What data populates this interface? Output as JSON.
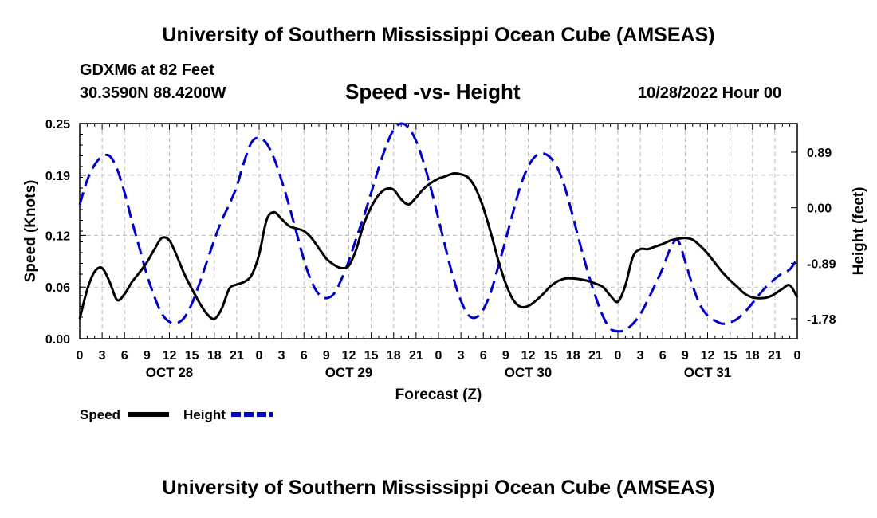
{
  "header": {
    "title": "University of Southern Mississippi Ocean Cube (AMSEAS)",
    "station": "GDXM6 at 82 Feet",
    "coords": "30.3590N   88.4200W",
    "date": "10/28/2022 Hour 00"
  },
  "footer": {
    "title": "University of Southern Mississippi Ocean Cube (AMSEAS)"
  },
  "chart_data": {
    "type": "line",
    "title": "Speed -vs- Height",
    "xlabel": "Forecast (Z)",
    "ylabel": "Speed (Knots)",
    "ylabel_right": "Height (feet)",
    "x_unit": "hours since 10/28/2022 00Z",
    "xlim": [
      0,
      96
    ],
    "ylim": [
      0,
      0.25
    ],
    "ylim_right": [
      -2.1,
      1.35
    ],
    "grid": true,
    "legend_position": "bottom-left",
    "x_tick_labels": [
      "0",
      "3",
      "6",
      "9",
      "12",
      "15",
      "18",
      "21",
      "0",
      "3",
      "6",
      "9",
      "12",
      "15",
      "18",
      "21",
      "0",
      "3",
      "6",
      "9",
      "12",
      "15",
      "18",
      "21",
      "0",
      "3",
      "6",
      "9",
      "12",
      "15",
      "18",
      "21",
      "0"
    ],
    "day_labels": [
      "OCT 28",
      "OCT 29",
      "OCT 30",
      "OCT 31"
    ],
    "y_ticks_left": [
      "0.25",
      "0.19",
      "0.12",
      "0.06",
      "0.00"
    ],
    "y_ticks_left_values": [
      0.25,
      0.19,
      0.12,
      0.06,
      0.0
    ],
    "y_ticks_right": [
      "0.89",
      "0.00",
      "-0.89",
      "-1.78"
    ],
    "y_ticks_right_values": [
      0.89,
      0.0,
      -0.89,
      -1.78
    ],
    "series": [
      {
        "name": "Speed",
        "axis": "left",
        "color": "#000000",
        "dash": "solid",
        "x": [
          0,
          1,
          2,
          3,
          4,
          5,
          6,
          7,
          8,
          9,
          10,
          11,
          12,
          13,
          14,
          15,
          16,
          17,
          18,
          19,
          20,
          21,
          22,
          23,
          24,
          25,
          26,
          27,
          28,
          29,
          30,
          31,
          32,
          33,
          34,
          35,
          36,
          37,
          38,
          39,
          40,
          41,
          42,
          43,
          44,
          45,
          46,
          47,
          48,
          49,
          50,
          51,
          52,
          53,
          54,
          55,
          56,
          57,
          58,
          59,
          60,
          61,
          62,
          63,
          64,
          65,
          66,
          67,
          68,
          69,
          70,
          71,
          72,
          73,
          74,
          75,
          76,
          77,
          78,
          79,
          80,
          81,
          82,
          83,
          84,
          85,
          86,
          87,
          88,
          89,
          90,
          91,
          92,
          93,
          94,
          95,
          96
        ],
        "values": [
          0.023,
          0.057,
          0.078,
          0.082,
          0.066,
          0.045,
          0.052,
          0.066,
          0.077,
          0.089,
          0.104,
          0.117,
          0.114,
          0.096,
          0.075,
          0.058,
          0.042,
          0.029,
          0.023,
          0.035,
          0.058,
          0.063,
          0.066,
          0.074,
          0.098,
          0.138,
          0.147,
          0.139,
          0.131,
          0.128,
          0.125,
          0.117,
          0.105,
          0.093,
          0.086,
          0.082,
          0.085,
          0.104,
          0.133,
          0.153,
          0.167,
          0.174,
          0.173,
          0.162,
          0.156,
          0.164,
          0.174,
          0.181,
          0.186,
          0.189,
          0.192,
          0.191,
          0.187,
          0.174,
          0.152,
          0.123,
          0.091,
          0.064,
          0.045,
          0.037,
          0.038,
          0.044,
          0.052,
          0.061,
          0.067,
          0.07,
          0.07,
          0.069,
          0.067,
          0.064,
          0.06,
          0.05,
          0.043,
          0.062,
          0.095,
          0.104,
          0.104,
          0.107,
          0.11,
          0.114,
          0.116,
          0.117,
          0.115,
          0.108,
          0.099,
          0.088,
          0.077,
          0.068,
          0.06,
          0.052,
          0.048,
          0.047,
          0.048,
          0.052,
          0.058,
          0.062,
          0.048
        ]
      },
      {
        "name": "Height",
        "axis": "right",
        "color": "#0000cc",
        "dash": "dashed",
        "x": [
          0,
          1,
          2,
          3,
          4,
          5,
          6,
          7,
          8,
          9,
          10,
          11,
          12,
          13,
          14,
          15,
          16,
          17,
          18,
          19,
          20,
          21,
          22,
          23,
          24,
          25,
          26,
          27,
          28,
          29,
          30,
          31,
          32,
          33,
          34,
          35,
          36,
          37,
          38,
          39,
          40,
          41,
          42,
          43,
          44,
          45,
          46,
          47,
          48,
          49,
          50,
          51,
          52,
          53,
          54,
          55,
          56,
          57,
          58,
          59,
          60,
          61,
          62,
          63,
          64,
          65,
          66,
          67,
          68,
          69,
          70,
          71,
          72,
          73,
          74,
          75,
          76,
          77,
          78,
          79,
          80,
          81,
          82,
          83,
          84,
          85,
          86,
          87,
          88,
          89,
          90,
          91,
          92,
          93,
          94,
          95,
          96
        ],
        "values": [
          0.05,
          0.44,
          0.69,
          0.82,
          0.83,
          0.62,
          0.24,
          -0.22,
          -0.65,
          -1.08,
          -1.43,
          -1.7,
          -1.83,
          -1.85,
          -1.76,
          -1.54,
          -1.22,
          -0.87,
          -0.52,
          -0.2,
          0.05,
          0.34,
          0.74,
          1.05,
          1.12,
          1.03,
          0.79,
          0.44,
          0.04,
          -0.4,
          -0.84,
          -1.18,
          -1.39,
          -1.45,
          -1.38,
          -1.15,
          -0.85,
          -0.49,
          -0.14,
          0.24,
          0.64,
          0.99,
          1.25,
          1.35,
          1.28,
          1.07,
          0.73,
          0.3,
          -0.18,
          -0.67,
          -1.13,
          -1.49,
          -1.72,
          -1.76,
          -1.63,
          -1.35,
          -0.94,
          -0.51,
          -0.06,
          0.36,
          0.66,
          0.83,
          0.87,
          0.8,
          0.62,
          0.29,
          -0.15,
          -0.61,
          -1.04,
          -1.42,
          -1.74,
          -1.94,
          -1.98,
          -1.96,
          -1.86,
          -1.71,
          -1.48,
          -1.23,
          -0.97,
          -0.66,
          -0.52,
          -0.86,
          -1.25,
          -1.56,
          -1.73,
          -1.81,
          -1.86,
          -1.84,
          -1.78,
          -1.67,
          -1.53,
          -1.38,
          -1.25,
          -1.14,
          -1.05,
          -0.99,
          -0.82
        ]
      }
    ]
  }
}
